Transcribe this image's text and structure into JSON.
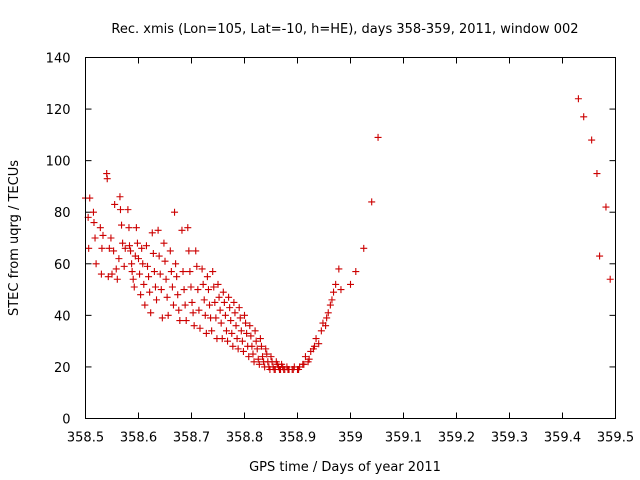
{
  "chart_data": {
    "type": "scatter",
    "title": "Rec. xmis (Lon=105, Lat=-10, h=HE), days 358-359, 2011, window 002",
    "xlabel": "GPS time / Days of year 2011",
    "ylabel": "STEC from uqrg / TECUs",
    "xlim": [
      358.5,
      359.5
    ],
    "ylim": [
      0,
      140
    ],
    "xticks": [
      "358.5",
      "358.6",
      "358.7",
      "358.8",
      "358.9",
      "359",
      "359.1",
      "359.2",
      "359.3",
      "359.4",
      "359.5"
    ],
    "yticks": [
      "0",
      "20",
      "40",
      "60",
      "80",
      "100",
      "120",
      "140"
    ],
    "marker": "plus",
    "color": "#cc0000",
    "grid": false,
    "legend": "none",
    "points": [
      [
        358.5,
        85.5
      ],
      [
        358.505,
        78
      ],
      [
        358.506,
        66
      ],
      [
        358.508,
        85.5
      ],
      [
        358.515,
        80
      ],
      [
        358.516,
        76
      ],
      [
        358.518,
        70
      ],
      [
        358.52,
        60
      ],
      [
        358.528,
        74
      ],
      [
        358.53,
        56
      ],
      [
        358.531,
        66
      ],
      [
        358.533,
        71
      ],
      [
        358.54,
        95
      ],
      [
        358.541,
        93
      ],
      [
        358.543,
        55
      ],
      [
        358.545,
        66
      ],
      [
        358.548,
        70
      ],
      [
        358.55,
        56
      ],
      [
        358.553,
        65
      ],
      [
        358.555,
        83
      ],
      [
        358.558,
        58
      ],
      [
        358.56,
        54
      ],
      [
        358.563,
        62
      ],
      [
        358.565,
        86
      ],
      [
        358.566,
        81
      ],
      [
        358.568,
        75
      ],
      [
        358.57,
        68
      ],
      [
        358.573,
        59
      ],
      [
        358.575,
        66
      ],
      [
        358.58,
        81
      ],
      [
        358.582,
        74
      ],
      [
        358.583,
        67
      ],
      [
        358.585,
        65
      ],
      [
        358.587,
        60
      ],
      [
        358.588,
        57
      ],
      [
        358.59,
        54
      ],
      [
        358.592,
        51
      ],
      [
        358.594,
        63
      ],
      [
        358.596,
        74
      ],
      [
        358.598,
        68
      ],
      [
        358.6,
        62
      ],
      [
        358.602,
        56
      ],
      [
        358.604,
        48
      ],
      [
        358.606,
        66
      ],
      [
        358.608,
        60
      ],
      [
        358.61,
        52
      ],
      [
        358.612,
        44
      ],
      [
        358.615,
        67
      ],
      [
        358.617,
        59
      ],
      [
        358.619,
        55
      ],
      [
        358.621,
        49
      ],
      [
        358.623,
        41
      ],
      [
        358.626,
        72
      ],
      [
        358.628,
        64
      ],
      [
        358.63,
        57
      ],
      [
        358.632,
        51
      ],
      [
        358.634,
        46
      ],
      [
        358.637,
        73
      ],
      [
        358.639,
        63
      ],
      [
        358.641,
        56
      ],
      [
        358.643,
        50
      ],
      [
        358.645,
        39
      ],
      [
        358.648,
        68
      ],
      [
        358.65,
        61
      ],
      [
        358.652,
        54
      ],
      [
        358.654,
        47
      ],
      [
        358.656,
        40
      ],
      [
        358.66,
        65
      ],
      [
        358.662,
        57
      ],
      [
        358.664,
        51
      ],
      [
        358.666,
        44
      ],
      [
        358.668,
        80
      ],
      [
        358.67,
        60
      ],
      [
        358.672,
        55
      ],
      [
        358.674,
        48
      ],
      [
        358.676,
        42
      ],
      [
        358.678,
        38
      ],
      [
        358.682,
        73
      ],
      [
        358.684,
        57
      ],
      [
        358.686,
        50
      ],
      [
        358.688,
        44
      ],
      [
        358.69,
        38
      ],
      [
        358.693,
        74
      ],
      [
        358.695,
        65
      ],
      [
        358.697,
        57
      ],
      [
        358.699,
        51
      ],
      [
        358.701,
        45
      ],
      [
        358.703,
        41
      ],
      [
        358.705,
        36
      ],
      [
        358.708,
        65
      ],
      [
        358.71,
        59
      ],
      [
        358.712,
        50
      ],
      [
        358.714,
        42
      ],
      [
        358.716,
        35
      ],
      [
        358.72,
        58
      ],
      [
        358.722,
        52
      ],
      [
        358.724,
        46
      ],
      [
        358.726,
        40
      ],
      [
        358.728,
        33
      ],
      [
        358.73,
        55
      ],
      [
        358.732,
        50
      ],
      [
        358.734,
        44
      ],
      [
        358.736,
        39
      ],
      [
        358.738,
        34
      ],
      [
        358.74,
        57
      ],
      [
        358.742,
        51
      ],
      [
        358.744,
        45
      ],
      [
        358.746,
        39
      ],
      [
        358.748,
        31
      ],
      [
        358.75,
        52
      ],
      [
        358.752,
        47
      ],
      [
        358.754,
        42
      ],
      [
        358.756,
        37
      ],
      [
        358.758,
        31
      ],
      [
        358.76,
        49
      ],
      [
        358.762,
        45
      ],
      [
        358.764,
        40
      ],
      [
        358.766,
        34
      ],
      [
        358.768,
        30
      ],
      [
        358.77,
        47
      ],
      [
        358.772,
        43
      ],
      [
        358.774,
        38
      ],
      [
        358.776,
        33
      ],
      [
        358.778,
        28
      ],
      [
        358.78,
        45
      ],
      [
        358.782,
        41
      ],
      [
        358.784,
        36
      ],
      [
        358.786,
        31
      ],
      [
        358.788,
        27
      ],
      [
        358.79,
        43
      ],
      [
        358.792,
        39
      ],
      [
        358.794,
        34
      ],
      [
        358.796,
        30
      ],
      [
        358.798,
        26
      ],
      [
        358.8,
        40
      ],
      [
        358.802,
        37
      ],
      [
        358.804,
        33
      ],
      [
        358.806,
        28
      ],
      [
        358.808,
        24
      ],
      [
        358.81,
        36
      ],
      [
        358.812,
        32
      ],
      [
        358.814,
        28
      ],
      [
        358.816,
        25
      ],
      [
        358.818,
        22
      ],
      [
        358.82,
        34
      ],
      [
        358.822,
        30
      ],
      [
        358.824,
        27
      ],
      [
        358.826,
        23
      ],
      [
        358.828,
        21
      ],
      [
        358.83,
        31
      ],
      [
        358.832,
        28
      ],
      [
        358.834,
        24
      ],
      [
        358.836,
        22
      ],
      [
        358.838,
        20
      ],
      [
        358.84,
        27
      ],
      [
        358.842,
        25
      ],
      [
        358.844,
        22
      ],
      [
        358.846,
        20
      ],
      [
        358.848,
        19
      ],
      [
        358.85,
        24
      ],
      [
        358.852,
        22
      ],
      [
        358.854,
        20
      ],
      [
        358.856,
        19
      ],
      [
        358.858,
        19
      ],
      [
        358.86,
        22
      ],
      [
        358.862,
        21
      ],
      [
        358.864,
        20
      ],
      [
        358.866,
        19
      ],
      [
        358.868,
        19
      ],
      [
        358.87,
        21
      ],
      [
        358.872,
        20
      ],
      [
        358.874,
        19
      ],
      [
        358.876,
        19
      ],
      [
        358.88,
        20
      ],
      [
        358.882,
        19
      ],
      [
        358.884,
        19
      ],
      [
        358.89,
        19
      ],
      [
        358.892,
        19
      ],
      [
        358.894,
        20
      ],
      [
        358.9,
        19
      ],
      [
        358.902,
        19
      ],
      [
        358.904,
        20
      ],
      [
        358.91,
        21
      ],
      [
        358.912,
        21
      ],
      [
        358.915,
        24
      ],
      [
        358.92,
        22
      ],
      [
        358.922,
        23
      ],
      [
        358.925,
        26
      ],
      [
        358.93,
        27
      ],
      [
        358.932,
        28
      ],
      [
        358.935,
        31
      ],
      [
        358.94,
        29
      ],
      [
        358.945,
        34
      ],
      [
        358.948,
        37
      ],
      [
        358.953,
        36
      ],
      [
        358.955,
        39
      ],
      [
        358.958,
        41
      ],
      [
        358.962,
        44
      ],
      [
        358.965,
        46
      ],
      [
        358.968,
        49
      ],
      [
        358.972,
        52
      ],
      [
        358.978,
        58
      ],
      [
        358.982,
        50
      ],
      [
        359.0,
        52
      ],
      [
        359.01,
        57
      ],
      [
        359.025,
        66
      ],
      [
        359.04,
        84
      ],
      [
        359.052,
        109
      ],
      [
        359.43,
        124
      ],
      [
        359.44,
        117
      ],
      [
        359.455,
        108
      ],
      [
        359.465,
        95
      ],
      [
        359.47,
        63
      ],
      [
        359.482,
        82
      ],
      [
        359.49,
        54
      ]
    ]
  }
}
